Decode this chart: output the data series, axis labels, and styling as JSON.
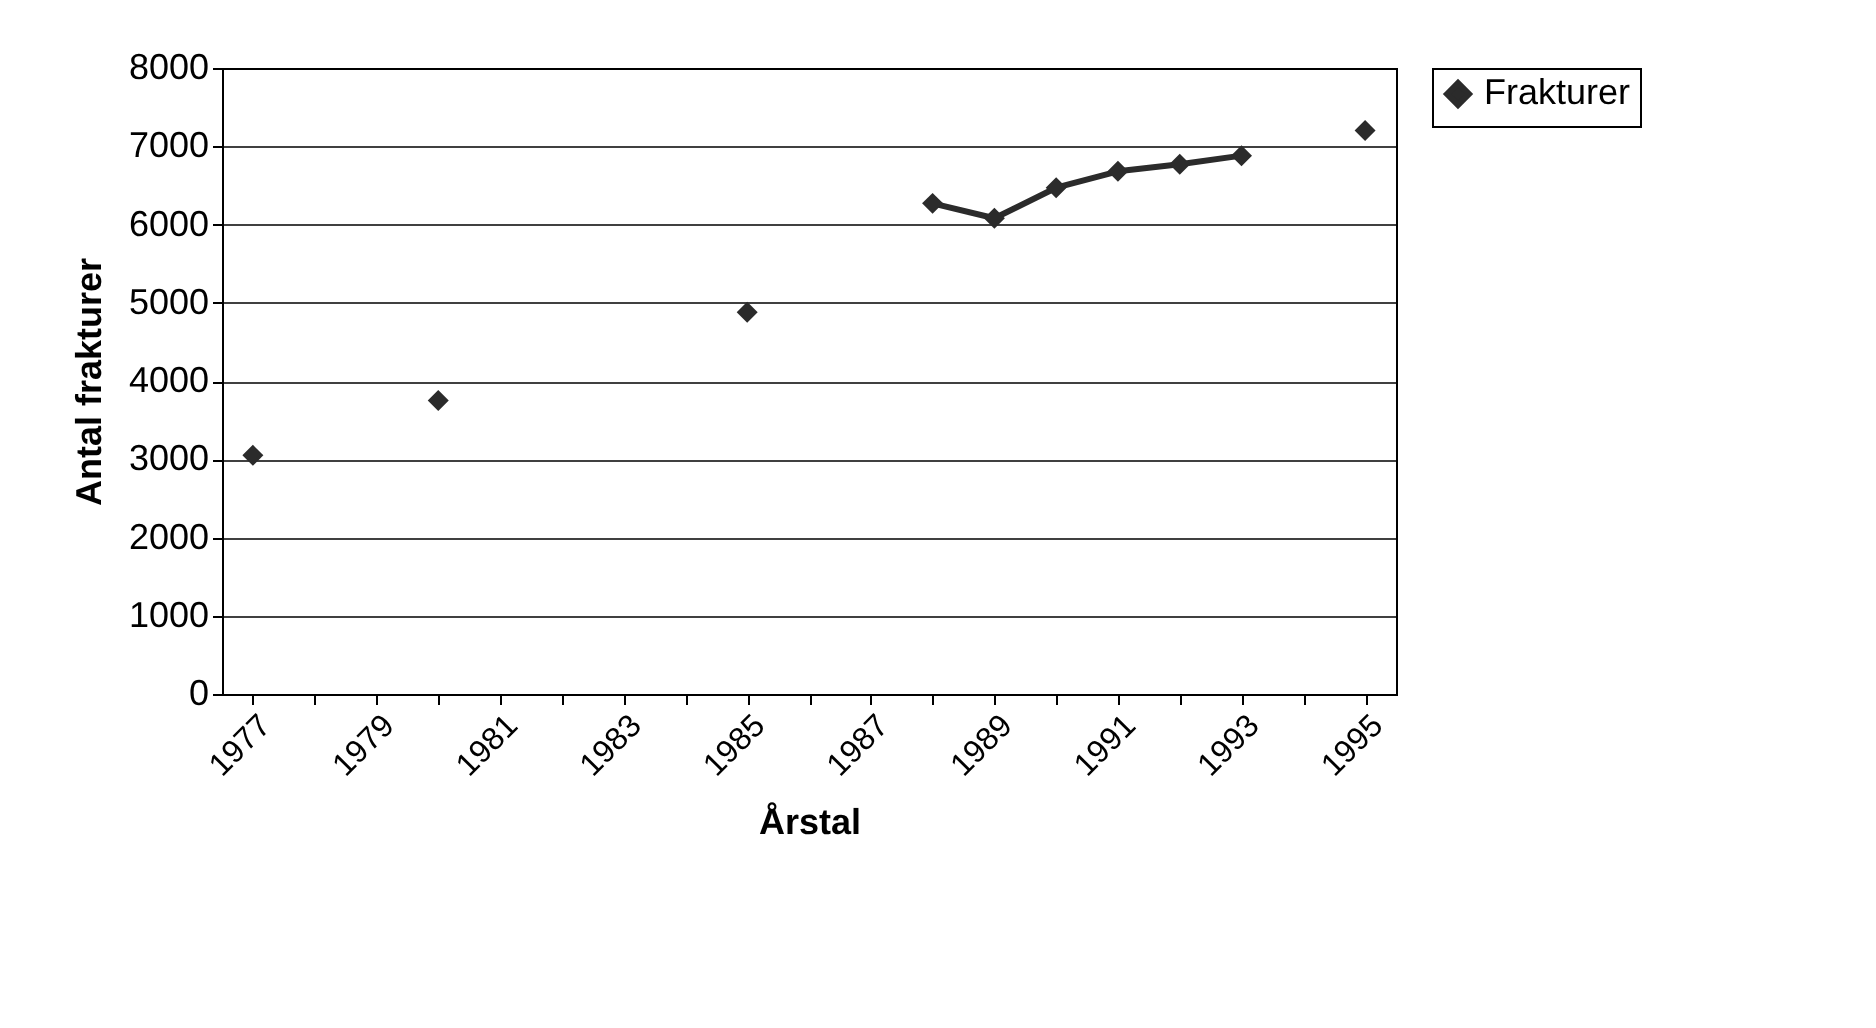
{
  "chart_data": {
    "type": "line",
    "xlabel": "Årstal",
    "ylabel": "Antal frakturer",
    "categories": [
      "1977",
      null,
      "1979",
      null,
      "1981",
      null,
      "1983",
      null,
      "1985",
      null,
      "1987",
      null,
      "1989",
      null,
      "1991",
      null,
      "1993",
      null,
      "1995"
    ],
    "series": [
      {
        "name": "Frakturer",
        "color": "#2b2b2b",
        "values": [
          3050,
          null,
          null,
          3750,
          null,
          null,
          null,
          null,
          4880,
          null,
          null,
          6270,
          6080,
          6470,
          6680,
          6770,
          6880,
          null,
          7200
        ]
      }
    ],
    "ylim": [
      0,
      8000
    ],
    "yticks": [
      0,
      1000,
      2000,
      3000,
      4000,
      5000,
      6000,
      7000,
      8000
    ],
    "grid": "y",
    "legend": "right",
    "marker": "diamond",
    "line_style": "solid"
  }
}
